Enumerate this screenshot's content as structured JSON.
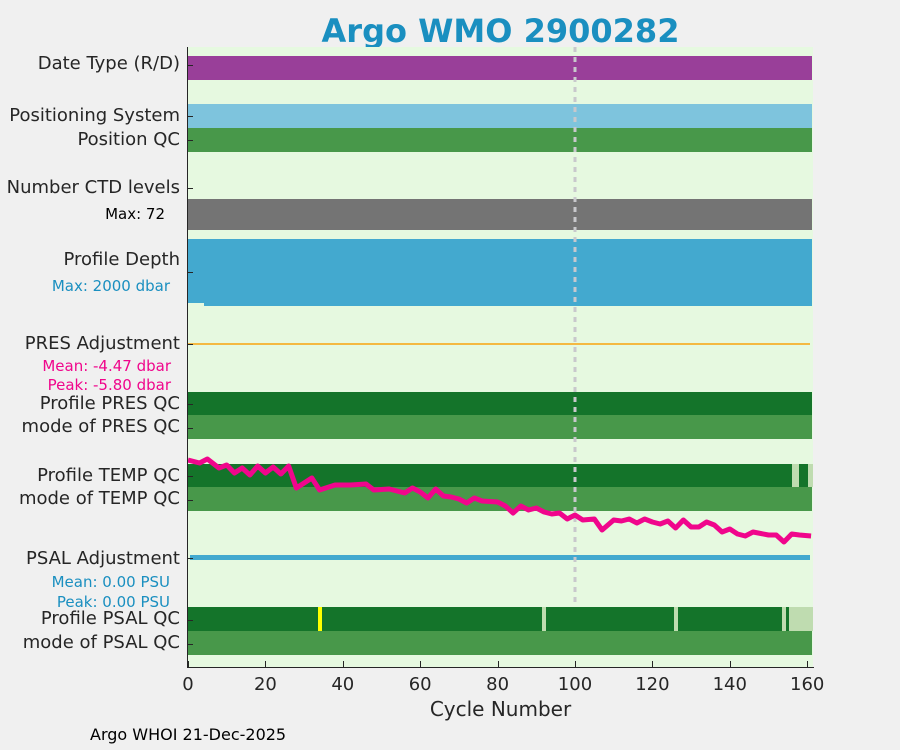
{
  "title": "Argo WMO 2900282",
  "labels": {
    "date_type": "Date Type (R/D)",
    "positioning": "Positioning System",
    "position_qc": "Position QC",
    "ctd_levels": "Number CTD levels",
    "ctd_max": "Max: 72",
    "profile_depth": "Profile Depth",
    "depth_max": "Max: 2000 dbar",
    "pres_adj": "PRES Adjustment",
    "pres_mean": "Mean: -4.47 dbar",
    "pres_peak": "Peak: -5.80 dbar",
    "pres_qc": "Profile PRES QC",
    "pres_mode": "mode of PRES QC",
    "temp_qc": "Profile TEMP QC",
    "temp_mode": "mode of TEMP QC",
    "psal_adj": "PSAL Adjustment",
    "psal_mean": "Mean: 0.00 PSU",
    "psal_peak": "Peak: 0.00 PSU",
    "psal_qc": "Profile PSAL QC",
    "psal_mode": "mode of PSAL QC"
  },
  "colors": {
    "title": "#1a8fc0",
    "date_type": "#993f99",
    "positioning": "#7ec4dd",
    "qc_good": "#14742a",
    "qc_mode": "#48984a",
    "qc_light": "#bfdcb0",
    "qc_yellow": "#ffff00",
    "ctd": "#747474",
    "depth": "#43a9cf",
    "pres_adj": "#f4b942",
    "pink": "#f0068c",
    "psal_adj": "#43a9cf",
    "bg": "#e6f9e0"
  },
  "chart_data": {
    "type": "timeline",
    "xlabel": "Cycle Number",
    "xlim": [
      0,
      161.5
    ],
    "xticks": [
      "0",
      "20",
      "40",
      "60",
      "80",
      "100",
      "120",
      "140",
      "160"
    ],
    "marker_cycle": 100,
    "psal_qc_flags": [
      {
        "from": 33.5,
        "to": 34.5,
        "flag": "yellow"
      },
      {
        "from": 91.5,
        "to": 92.5,
        "flag": "light"
      },
      {
        "from": 125.5,
        "to": 126.5,
        "flag": "light"
      },
      {
        "from": 153.5,
        "to": 154.5,
        "flag": "light"
      },
      {
        "from": 155.3,
        "to": 161.5,
        "flag": "light"
      }
    ],
    "temp_qc_flags": [
      {
        "from": 156,
        "to": 158,
        "flag": "light"
      },
      {
        "from": 160.3,
        "to": 161.5,
        "flag": "light"
      }
    ],
    "temp_trend": [
      [
        0,
        0
      ],
      [
        3,
        -0.3
      ],
      [
        5,
        0.1
      ],
      [
        8,
        -0.8
      ],
      [
        10,
        -0.5
      ],
      [
        12,
        -1.3
      ],
      [
        14,
        -0.8
      ],
      [
        16,
        -1.5
      ],
      [
        18,
        -0.6
      ],
      [
        20,
        -1.3
      ],
      [
        22,
        -0.7
      ],
      [
        24,
        -1.4
      ],
      [
        26,
        -0.6
      ],
      [
        28,
        -2.8
      ],
      [
        30,
        -2.3
      ],
      [
        32,
        -1.8
      ],
      [
        34,
        -3.0
      ],
      [
        38,
        -2.5
      ],
      [
        42,
        -2.5
      ],
      [
        46,
        -2.4
      ],
      [
        48,
        -3.0
      ],
      [
        52,
        -2.9
      ],
      [
        56,
        -3.3
      ],
      [
        58,
        -2.8
      ],
      [
        60,
        -3.2
      ],
      [
        62,
        -3.8
      ],
      [
        64,
        -2.9
      ],
      [
        66,
        -3.6
      ],
      [
        68,
        -3.7
      ],
      [
        70,
        -3.9
      ],
      [
        72,
        -4.3
      ],
      [
        74,
        -3.8
      ],
      [
        76,
        -4.1
      ],
      [
        80,
        -4.2
      ],
      [
        82,
        -4.6
      ],
      [
        84,
        -5.3
      ],
      [
        86,
        -4.6
      ],
      [
        88,
        -5.0
      ],
      [
        90,
        -4.8
      ],
      [
        92,
        -5.2
      ],
      [
        94,
        -5.4
      ],
      [
        96,
        -5.3
      ],
      [
        98,
        -5.9
      ],
      [
        100,
        -5.5
      ],
      [
        102,
        -6.0
      ],
      [
        105,
        -5.9
      ],
      [
        107,
        -7.0
      ],
      [
        110,
        -6.0
      ],
      [
        112,
        -6.1
      ],
      [
        114,
        -5.9
      ],
      [
        116,
        -6.3
      ],
      [
        118,
        -5.9
      ],
      [
        120,
        -6.2
      ],
      [
        122,
        -6.4
      ],
      [
        124,
        -6.1
      ],
      [
        126,
        -6.8
      ],
      [
        128,
        -6.0
      ],
      [
        130,
        -6.7
      ],
      [
        132,
        -6.7
      ],
      [
        134,
        -6.2
      ],
      [
        136,
        -6.5
      ],
      [
        138,
        -7.2
      ],
      [
        140,
        -6.9
      ],
      [
        142,
        -7.4
      ],
      [
        144,
        -7.6
      ],
      [
        146,
        -7.2
      ],
      [
        150,
        -7.5
      ],
      [
        152,
        -7.5
      ],
      [
        154,
        -8.2
      ],
      [
        156,
        -7.4
      ],
      [
        158,
        -7.5
      ],
      [
        161,
        -7.6
      ]
    ]
  },
  "footer": "Argo WHOI 21-Dec-2025"
}
